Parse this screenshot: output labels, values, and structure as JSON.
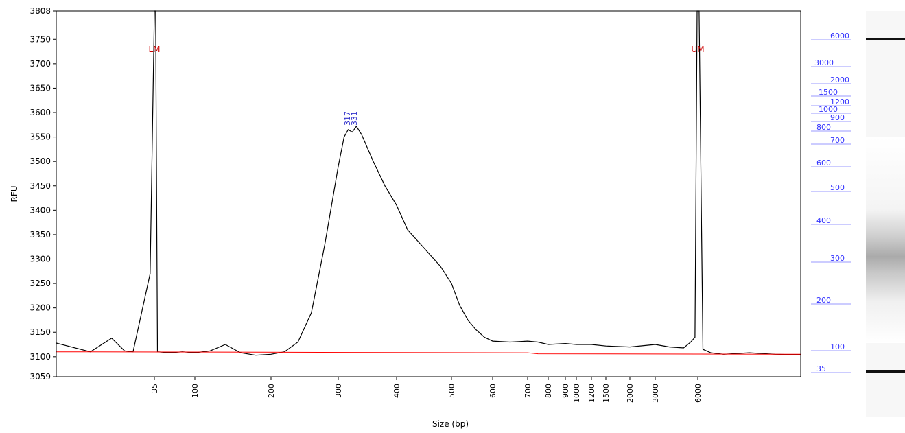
{
  "chart_data": {
    "type": "line",
    "title": "",
    "xlabel": "Size (bp)",
    "ylabel": "RFU",
    "ylim": [
      3059,
      3808
    ],
    "y_ticks": [
      3808,
      3750,
      3700,
      3650,
      3600,
      3550,
      3500,
      3450,
      3400,
      3350,
      3300,
      3250,
      3200,
      3150,
      3100,
      3059
    ],
    "x_ticks": [
      "35",
      "100",
      "200",
      "300",
      "400",
      "500",
      "600",
      "700",
      "800",
      "900",
      "1000",
      "1200",
      "1500",
      "2000",
      "3000",
      "6000"
    ],
    "markers": [
      {
        "label": "LM",
        "x": 35,
        "color": "#cc0000"
      },
      {
        "label": "UM",
        "x": 6000,
        "color": "#cc0000"
      }
    ],
    "peak_labels": [
      {
        "label": "317",
        "x": 317
      },
      {
        "label": "331",
        "x": 331
      }
    ],
    "series": [
      {
        "color": "#000000",
        "points": [
          [
            12,
            3128
          ],
          [
            20,
            3110
          ],
          [
            25,
            3138
          ],
          [
            28,
            3112
          ],
          [
            30,
            3110
          ],
          [
            34,
            3270
          ],
          [
            35,
            3808
          ],
          [
            37,
            3808
          ],
          [
            40,
            3110
          ],
          [
            60,
            3108
          ],
          [
            80,
            3110
          ],
          [
            100,
            3108
          ],
          [
            120,
            3112
          ],
          [
            140,
            3125
          ],
          [
            160,
            3108
          ],
          [
            180,
            3103
          ],
          [
            200,
            3105
          ],
          [
            220,
            3110
          ],
          [
            240,
            3130
          ],
          [
            260,
            3190
          ],
          [
            280,
            3330
          ],
          [
            300,
            3490
          ],
          [
            310,
            3550
          ],
          [
            317,
            3565
          ],
          [
            324,
            3560
          ],
          [
            331,
            3572
          ],
          [
            340,
            3555
          ],
          [
            360,
            3500
          ],
          [
            380,
            3450
          ],
          [
            400,
            3410
          ],
          [
            420,
            3360
          ],
          [
            440,
            3335
          ],
          [
            460,
            3310
          ],
          [
            480,
            3285
          ],
          [
            500,
            3250
          ],
          [
            520,
            3205
          ],
          [
            540,
            3175
          ],
          [
            560,
            3155
          ],
          [
            580,
            3140
          ],
          [
            600,
            3132
          ],
          [
            650,
            3130
          ],
          [
            700,
            3132
          ],
          [
            750,
            3130
          ],
          [
            800,
            3125
          ],
          [
            900,
            3127
          ],
          [
            1000,
            3125
          ],
          [
            1200,
            3125
          ],
          [
            1500,
            3122
          ],
          [
            2000,
            3120
          ],
          [
            3000,
            3125
          ],
          [
            4000,
            3120
          ],
          [
            5000,
            3118
          ],
          [
            5500,
            3130
          ],
          [
            5800,
            3140
          ],
          [
            5950,
            3808
          ],
          [
            6050,
            3808
          ],
          [
            6200,
            3115
          ],
          [
            6500,
            3108
          ],
          [
            7000,
            3105
          ],
          [
            8000,
            3108
          ],
          [
            9000,
            3105
          ],
          [
            10000,
            3104
          ]
        ]
      },
      {
        "color": "#ff0000",
        "points": [
          [
            12,
            3110
          ],
          [
            700,
            3108
          ],
          [
            750,
            3106
          ],
          [
            10000,
            3105
          ]
        ]
      }
    ]
  },
  "ladder": {
    "labels": [
      "6000",
      "3000",
      "2000",
      "1500",
      "1200",
      "1000",
      "900",
      "800",
      "700",
      "600",
      "500",
      "400",
      "300",
      "200",
      "100",
      "35"
    ],
    "color": "#3333ff"
  },
  "gel": {
    "bands": [
      {
        "size": "6000",
        "intensity": 1.0
      },
      {
        "size": "35",
        "intensity": 1.0
      }
    ],
    "smear_center": "300"
  }
}
